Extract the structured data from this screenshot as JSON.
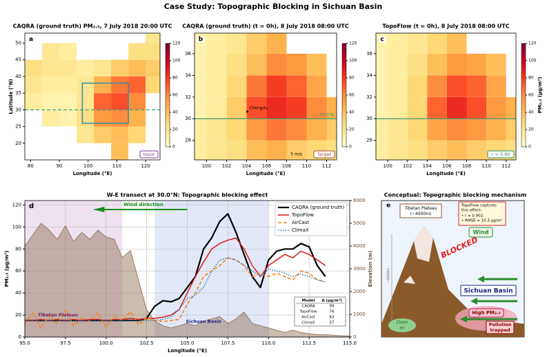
{
  "suptitle": "Case Study:  Topographic Blocking in Sichuan Basin",
  "chart_data": [
    {
      "type": "heatmap",
      "letter": "a",
      "title": "CAQRA (ground truth) PM₂.₅, 7 July 2018 20:00 UTC",
      "xlabel": "Longitude (°E)",
      "ylabel": "Latitude (°N)",
      "tag": "Input",
      "tag_color": "#7b3f9e",
      "xlim": [
        78,
        125
      ],
      "ylim": [
        15,
        53
      ],
      "xticks": [
        80,
        90,
        100,
        110,
        120
      ],
      "yticks": [
        20,
        25,
        30,
        35,
        40,
        45,
        50
      ],
      "x_edges": [
        78,
        84,
        90,
        96,
        102,
        108,
        114,
        120,
        125
      ],
      "y_edges": [
        15,
        20,
        25,
        30,
        35,
        40,
        45,
        50,
        53
      ],
      "values": [
        [
          null,
          null,
          null,
          null,
          null,
          40,
          null,
          null
        ],
        [
          null,
          null,
          null,
          20,
          35,
          40,
          30,
          null
        ],
        [
          null,
          15,
          10,
          25,
          55,
          60,
          45,
          null
        ],
        [
          15,
          10,
          10,
          20,
          70,
          75,
          60,
          null
        ],
        [
          20,
          15,
          15,
          20,
          45,
          65,
          70,
          30
        ],
        [
          25,
          20,
          20,
          15,
          20,
          35,
          40,
          35
        ],
        [
          null,
          20,
          15,
          null,
          null,
          null,
          25,
          25
        ],
        [
          null,
          null,
          null,
          null,
          null,
          null,
          null,
          20
        ]
      ],
      "clim": [
        0,
        120
      ],
      "cticks": [
        0,
        20,
        40,
        60,
        80,
        100,
        120
      ],
      "box": {
        "x": [
          98,
          114
        ],
        "y": [
          26,
          38
        ]
      },
      "transect_lat": 30,
      "transect_style": "dashed"
    },
    {
      "type": "heatmap",
      "letter": "b",
      "title": "CAQRA (ground truth) (t = 0h), 8 July 2018 08:00 UTC",
      "xlabel": "Longitude (°E)",
      "tag": "Target",
      "tag_color": "#a0522d",
      "xlim": [
        98.8,
        113
      ],
      "ylim": [
        26.2,
        37.9
      ],
      "xticks": [
        100,
        102,
        104,
        106,
        108,
        110,
        112
      ],
      "yticks": [
        28,
        30,
        32,
        34,
        36
      ],
      "x_edges": [
        98.8,
        100,
        102,
        104,
        106,
        108,
        110,
        112,
        113
      ],
      "y_edges": [
        26.2,
        28,
        30,
        32,
        34,
        36,
        37.9
      ],
      "values": [
        [
          15,
          20,
          25,
          40,
          45,
          35,
          30,
          25
        ],
        [
          15,
          20,
          30,
          55,
          65,
          60,
          45,
          35
        ],
        [
          10,
          15,
          35,
          75,
          85,
          80,
          60,
          45
        ],
        [
          10,
          15,
          30,
          65,
          80,
          70,
          50,
          null
        ],
        [
          10,
          15,
          25,
          40,
          60,
          55,
          40,
          null
        ],
        [
          10,
          15,
          20,
          35,
          45,
          null,
          null,
          null
        ]
      ],
      "clim": [
        0,
        120
      ],
      "cticks": [
        0,
        20,
        40,
        60,
        80,
        100,
        120
      ],
      "transect_lat": 30,
      "transect_style": "solid",
      "city": "Chengdu",
      "transect_label": "30.0°N",
      "wind_scale": "5 m/s"
    },
    {
      "type": "heatmap",
      "letter": "c",
      "title": "TopoFlow (t = 0h), 8 July 2018 08:00 UTC",
      "xlabel": "Longitude (°E)",
      "clabel": "PM₂.₅ (µg/m³)",
      "tag": "r = 0.90",
      "tag_color": "#2e8b57",
      "xlim": [
        98.8,
        113
      ],
      "ylim": [
        26.2,
        37.9
      ],
      "xticks": [
        100,
        102,
        104,
        106,
        108,
        110,
        112
      ],
      "yticks": [
        28,
        30,
        32,
        34,
        36
      ],
      "x_edges": [
        98.8,
        100,
        102,
        104,
        106,
        108,
        110,
        112,
        113
      ],
      "y_edges": [
        26.2,
        28,
        30,
        32,
        34,
        36,
        37.9
      ],
      "values": [
        [
          15,
          20,
          25,
          35,
          40,
          35,
          30,
          25
        ],
        [
          15,
          20,
          30,
          50,
          60,
          55,
          45,
          35
        ],
        [
          10,
          15,
          30,
          70,
          85,
          75,
          55,
          45
        ],
        [
          10,
          15,
          30,
          60,
          75,
          70,
          50,
          null
        ],
        [
          10,
          15,
          25,
          40,
          55,
          50,
          40,
          null
        ],
        [
          10,
          15,
          20,
          30,
          40,
          null,
          null,
          null
        ]
      ],
      "clim": [
        0,
        120
      ],
      "cticks": [
        0,
        20,
        40,
        60,
        80,
        100,
        120
      ],
      "transect_lat": 30,
      "transect_style": "solid"
    },
    {
      "type": "line",
      "letter": "d",
      "title": "W-E transect at 30.0°N: Topographic blocking effect",
      "xlabel": "Longitude (°E)",
      "ylabel": "PM₂.₅ (µg/m³)",
      "y2label": "Elevation (m)",
      "xlim": [
        95,
        115
      ],
      "ylim": [
        0,
        124
      ],
      "y2lim": [
        0,
        6000
      ],
      "xticks": [
        {
          "value": 95,
          "label": "95.0"
        },
        {
          "value": 97.5,
          "label": "97.5"
        },
        {
          "value": 100,
          "label": "100.0"
        },
        {
          "value": 102.5,
          "label": "102.5"
        },
        {
          "value": 105,
          "label": "105.0"
        },
        {
          "value": 107.5,
          "label": "107.5"
        },
        {
          "value": 110,
          "label": "110.0"
        },
        {
          "value": 112.5,
          "label": "112.5"
        },
        {
          "value": 115,
          "label": "115.0"
        }
      ],
      "yticks": [
        0,
        20,
        40,
        60,
        80,
        100,
        120
      ],
      "y2ticks": [
        0,
        1000,
        2000,
        3000,
        4000,
        5000,
        6000
      ],
      "grid": true,
      "legend": "upper right",
      "shaded_regions": [
        {
          "x": [
            95,
            101
          ],
          "color": "#e8d5ea"
        },
        {
          "x": [
            103,
            110
          ],
          "color": "#d6def5"
        }
      ],
      "x": [
        95,
        95.5,
        96,
        96.5,
        97,
        97.5,
        98,
        98.5,
        99,
        99.5,
        100,
        100.5,
        101,
        101.5,
        102,
        102.5,
        103,
        103.5,
        104,
        104.5,
        105,
        105.5,
        106,
        106.5,
        107,
        107.5,
        108,
        108.5,
        109,
        109.5,
        110,
        110.5,
        111,
        111.5,
        112,
        112.5,
        113,
        113.5,
        114,
        114.5,
        115
      ],
      "series": [
        {
          "axis": "y2",
          "color": "#8b6a50",
          "fill": true,
          "values": [
            4000,
            4500,
            5000,
            4700,
            4300,
            4900,
            4200,
            4600,
            4300,
            4700,
            4400,
            4300,
            3500,
            3800,
            2500,
            1200,
            700,
            500,
            400,
            500,
            600,
            500,
            700,
            800,
            900,
            600,
            800,
            1100,
            600,
            500,
            400,
            300,
            200,
            300,
            200,
            150,
            100,
            100,
            80,
            60,
            50
          ]
        },
        {
          "name": "CAQRA (ground truth)",
          "color": "#000000",
          "width": 2.2,
          "dash": "solid",
          "values": [
            15,
            15,
            15,
            15,
            15,
            15,
            15,
            15,
            15,
            15,
            15,
            15,
            15,
            15,
            15,
            17,
            28,
            33,
            32,
            35,
            45,
            55,
            80,
            90,
            105,
            112,
            95,
            75,
            55,
            45,
            70,
            78,
            80,
            80,
            85,
            82,
            65,
            55,
            null,
            null,
            null
          ]
        },
        {
          "name": "TopoFlow",
          "color": "#d62728",
          "width": 1.6,
          "dash": "solid",
          "values": [
            15,
            15,
            16,
            15,
            16,
            15,
            16,
            15,
            16,
            16,
            15,
            16,
            16,
            17,
            16,
            17,
            17,
            18,
            20,
            25,
            40,
            55,
            68,
            80,
            85,
            88,
            90,
            80,
            65,
            55,
            65,
            70,
            75,
            72,
            78,
            75,
            70,
            65,
            null,
            null,
            null
          ]
        },
        {
          "name": "AirCast",
          "color": "#ff7f0e",
          "width": 1.6,
          "dash": "dashed",
          "values": [
            12,
            22,
            8,
            20,
            12,
            24,
            10,
            18,
            14,
            22,
            9,
            19,
            15,
            23,
            11,
            18,
            15,
            14,
            15,
            16,
            30,
            40,
            55,
            60,
            65,
            72,
            70,
            65,
            55,
            58,
            55,
            58,
            55,
            52,
            60,
            58,
            52,
            50,
            null,
            null,
            null
          ]
        },
        {
          "name": "ClimaX",
          "color": "#1f77b4",
          "width": 1.4,
          "dash": "dotted",
          "values": [
            15,
            15,
            15,
            15,
            15,
            15,
            15,
            15,
            15,
            15,
            15,
            15,
            15,
            15,
            15,
            15,
            15,
            16,
            18,
            25,
            35,
            38,
            45,
            60,
            70,
            72,
            70,
            65,
            60,
            55,
            62,
            60,
            58,
            55,
            57,
            55,
            52,
            50,
            null,
            null,
            null
          ]
        }
      ],
      "annotations": {
        "wind": "Wind direction",
        "tibet": "Tibetan Plateau",
        "basin": "Sichuan Basin"
      },
      "table": {
        "header": [
          "Model",
          "Δ (µg/m³)"
        ],
        "rows": [
          [
            "CAQRA",
            99
          ],
          [
            "TopoFlow",
            76
          ],
          [
            "AirCast",
            63
          ],
          [
            "ClimaX",
            57
          ]
        ]
      }
    }
  ],
  "diagram": {
    "title": "Conceptual: Topographic blocking mechanism",
    "letter": "e",
    "plateau": "Tibetan Plateau\n(~4000m)",
    "note": [
      "TopoFlow captures",
      "this effect:",
      "• r = 0.902",
      "• RMSE = 10.3 µg/m³"
    ],
    "blocked": "BLOCKED",
    "wind": "Wind",
    "basin": "Sichuan Basin",
    "height": "~4000m",
    "clean": [
      "Clean",
      "air"
    ],
    "high": "High PM₂.₅",
    "trapped": [
      "Pollution",
      "trapped"
    ]
  }
}
